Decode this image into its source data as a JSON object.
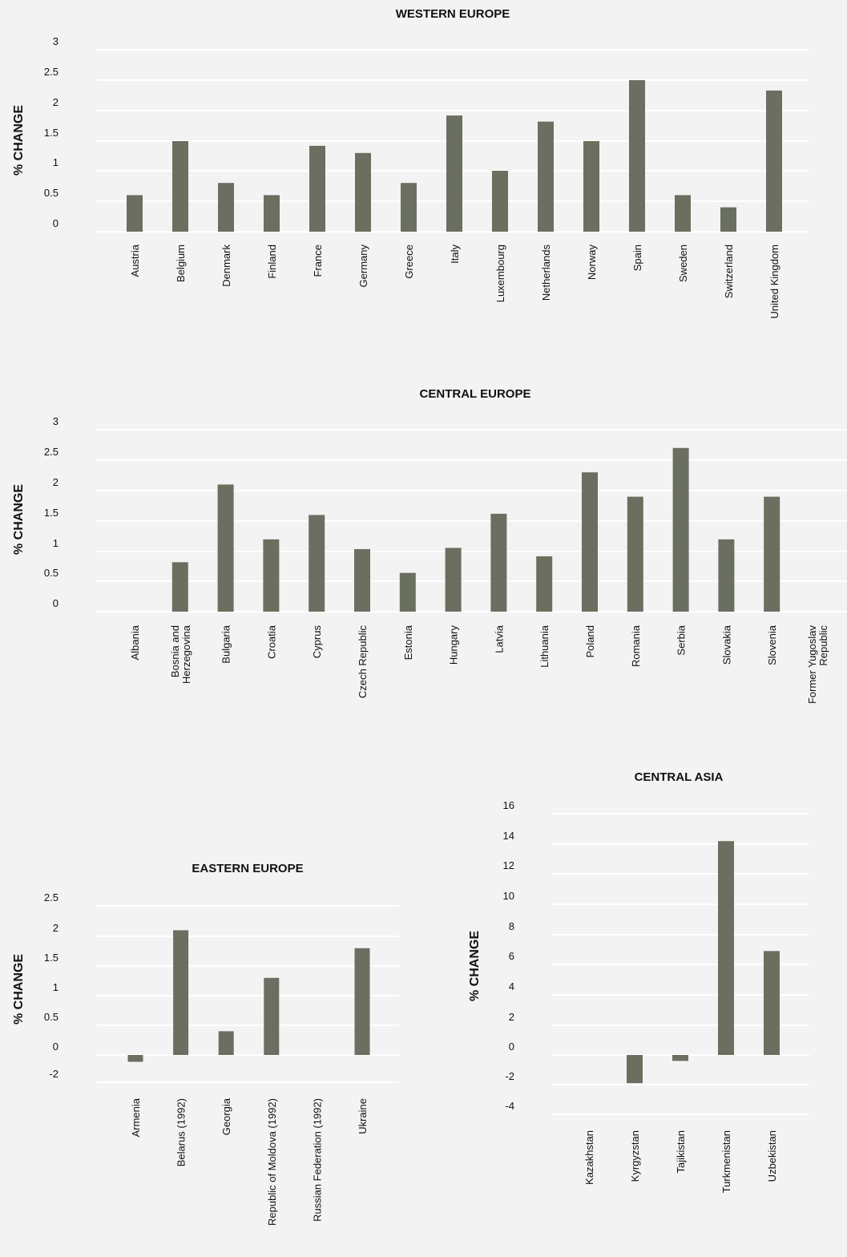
{
  "colors": {
    "bar": "#6b6f60",
    "grid": "#ffffff",
    "background": "#f3f3f3",
    "text": "#111111"
  },
  "chart_data": [
    {
      "type": "bar",
      "title": "WESTERN EUROPE",
      "ylabel": "% CHANGE",
      "grid": true,
      "yticks": [
        "0",
        "0.5",
        "1",
        "1.5",
        "2",
        "2.5",
        "3"
      ],
      "categories": [
        "Austria",
        "Belgium",
        "Denmark",
        "Finland",
        "France",
        "Germany",
        "Greece",
        "Italy",
        "Luxembourg",
        "Netherlands",
        "Norway",
        "Spain",
        "Sweden",
        "Switzerland",
        "United Kingdom"
      ],
      "values": [
        0.6,
        1.5,
        0.8,
        0.6,
        1.42,
        1.3,
        0.8,
        1.92,
        1.0,
        1.82,
        1.5,
        2.5,
        0.6,
        0.4,
        2.33
      ]
    },
    {
      "type": "bar",
      "title": "CENTRAL EUROPE",
      "ylabel": "% CHANGE",
      "grid": true,
      "yticks": [
        "0",
        "0.5",
        "1",
        "1.5",
        "2",
        "2.5",
        "3"
      ],
      "categories": [
        "Albania",
        "Bosnia and\nHerzegovina",
        "Bulgaria",
        "Croatia",
        "Cyprus",
        "Czech Republic",
        "Estonia",
        "Hungary",
        "Latvia",
        "Lithuania",
        "Poland",
        "Romania",
        "Serbia",
        "Slovakia",
        "Slovenia",
        "Former Yugoslav\nRepublic"
      ],
      "values": [
        0,
        0.82,
        2.1,
        1.2,
        1.6,
        1.04,
        0.64,
        1.06,
        1.62,
        0.92,
        2.3,
        1.9,
        2.7,
        1.2,
        1.9,
        0
      ]
    },
    {
      "type": "bar",
      "title": "EASTERN EUROPE",
      "ylabel": "% CHANGE",
      "grid": true,
      "yticks": [
        "-2",
        "0",
        "0.5",
        "1",
        "1.5",
        "2",
        "2.5"
      ],
      "categories": [
        "Armenia",
        "Belarus (1992)",
        "Georgia",
        "Republic of Moldova (1992)",
        "Russian Federation (1992)",
        "Ukraine"
      ],
      "values": [
        -0.5,
        2.1,
        0.4,
        1.3,
        0,
        1.8
      ]
    },
    {
      "type": "bar",
      "title": "CENTRAL ASIA",
      "ylabel": "% CHANGE",
      "grid": true,
      "yticks": [
        "-4",
        "-2",
        "0",
        "2",
        "4",
        "6",
        "8",
        "10",
        "12",
        "14",
        "16"
      ],
      "categories": [
        "Kazakhstan",
        "Kyrgyzstan",
        "Tajikistan",
        "Turkmenistan",
        "Uzbekistan"
      ],
      "values": [
        0,
        -1.9,
        -0.4,
        14.2,
        6.9
      ],
      "ylim": [
        -4,
        16
      ]
    }
  ]
}
